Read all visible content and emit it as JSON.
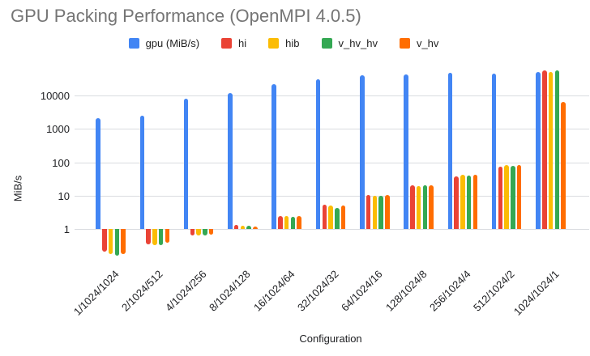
{
  "title": "GPU Packing Performance (OpenMPI 4.0.5)",
  "chart_data": {
    "type": "bar",
    "title": "GPU Packing Performance (OpenMPI 4.0.5)",
    "xlabel": "Configuration",
    "ylabel": "MiB/s",
    "y_scale": "log",
    "ylim": [
      0.13,
      60000
    ],
    "yticks": [
      1,
      10,
      100,
      1000,
      10000
    ],
    "grid": true,
    "legend_position": "top",
    "categories": [
      "1/1024/1024",
      "2/1024/512",
      "4/1024/256",
      "8/1024/128",
      "16/1024/64",
      "32/1024/32",
      "64/1024/16",
      "128/1024/8",
      "256/1024/4",
      "512/1024/2",
      "1024/1024/1"
    ],
    "series": [
      {
        "name": "gpu (MiB/s)",
        "color": "#4285F4",
        "values": [
          2100,
          2500,
          8000,
          12000,
          22000,
          31000,
          40000,
          43000,
          48000,
          45000,
          50000
        ]
      },
      {
        "name": "hi",
        "color": "#EA4335",
        "values": [
          0.21,
          0.35,
          0.65,
          1.3,
          2.5,
          5.3,
          10.5,
          20,
          38,
          75,
          55000
        ]
      },
      {
        "name": "hib",
        "color": "#FBBC04",
        "values": [
          0.18,
          0.33,
          0.65,
          1.25,
          2.4,
          5.1,
          10,
          19,
          41,
          84,
          50000
        ]
      },
      {
        "name": "v_hv_hv",
        "color": "#34A853",
        "values": [
          0.16,
          0.33,
          0.64,
          1.25,
          2.3,
          4.2,
          10,
          20,
          40,
          78,
          55000
        ]
      },
      {
        "name": "v_hv",
        "color": "#FF6D01",
        "values": [
          0.18,
          0.38,
          0.67,
          1.2,
          2.4,
          5.1,
          10.3,
          20,
          41,
          82,
          6300
        ]
      }
    ]
  }
}
